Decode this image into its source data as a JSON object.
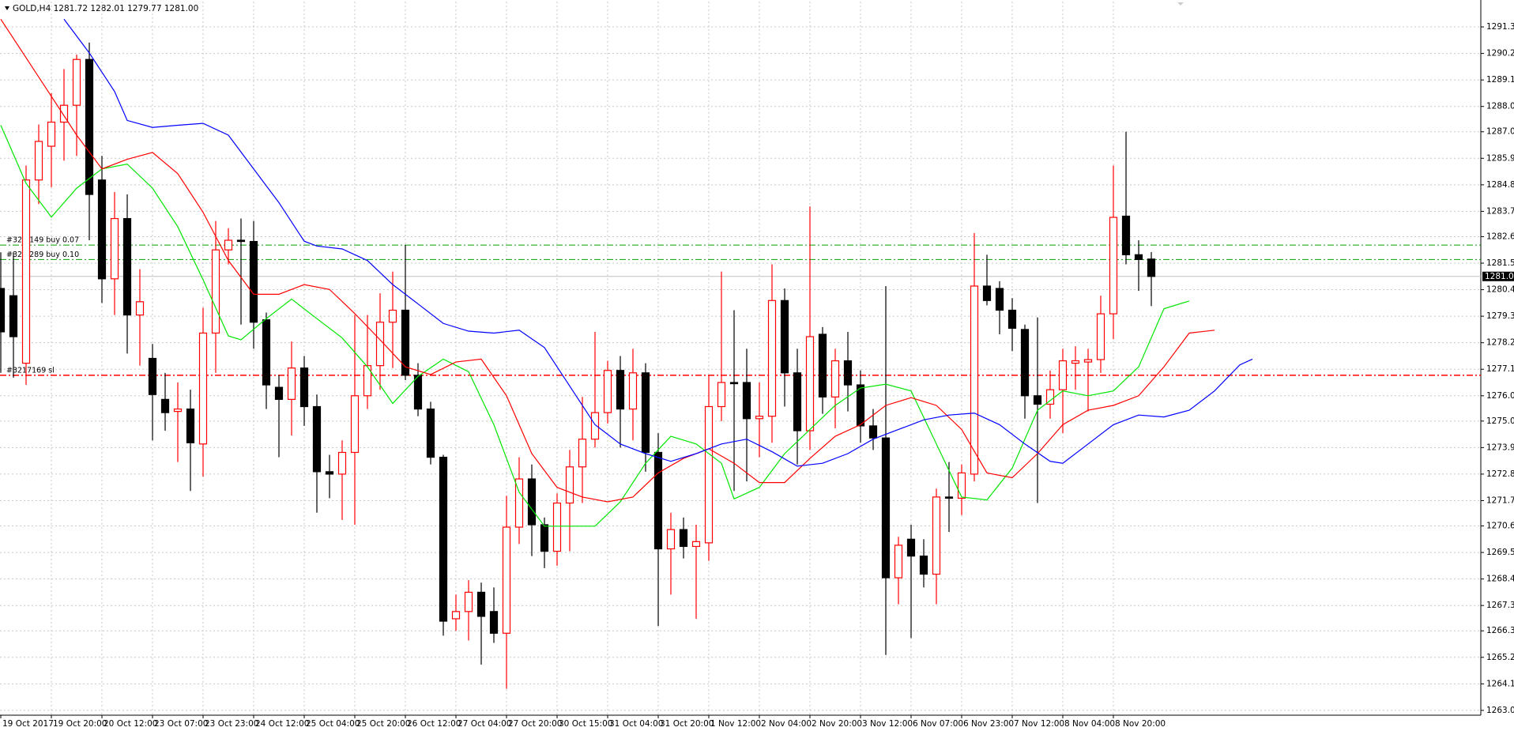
{
  "chart_data": {
    "type": "candlestick",
    "title": "GOLD,H4 1281.72 1282.01 1279.77 1281.00",
    "categories": [
      "19 Oct 2017",
      null,
      null,
      null,
      "19 Oct 20:00",
      null,
      null,
      null,
      "20 Oct 12:00",
      null,
      null,
      null,
      "23 Oct 07:00",
      null,
      null,
      null,
      "23 Oct 23:00",
      null,
      null,
      null,
      "24 Oct 12:00",
      null,
      null,
      null,
      "25 Oct 04:00",
      null,
      null,
      null,
      "25 Oct 20:00",
      null,
      null,
      null,
      "26 Oct 12:00",
      null,
      null,
      null,
      "27 Oct 04:00",
      null,
      null,
      null,
      "27 Oct 20:00",
      null,
      null,
      null,
      "30 Oct 15:00",
      null,
      null,
      null,
      "31 Oct 04:00",
      null,
      null,
      null,
      "31 Oct 20:00",
      null,
      null,
      null,
      "1 Nov 12:00",
      null,
      null,
      null,
      "2 Nov 04:00",
      null,
      null,
      null,
      "2 Nov 20:00",
      null,
      null,
      null,
      "3 Nov 12:00",
      null,
      null,
      null,
      "6 Nov 07:00",
      null,
      null,
      null,
      "6 Nov 23:00",
      null,
      null,
      null,
      "7 Nov 12:00",
      null,
      null,
      null,
      "8 Nov 04:00",
      null,
      null,
      null,
      "8 Nov 20:00",
      null,
      null,
      null,
      null,
      null,
      null,
      null,
      null,
      null,
      null,
      null
    ],
    "open": [
      1280.5,
      1280.2,
      1277.4,
      1285.0,
      1286.4,
      1287.4,
      1288.1,
      1290.0,
      1285.0,
      1280.9,
      1283.4,
      1279.4,
      1277.6,
      1275.9,
      1275.4,
      1275.5,
      1274.05,
      1278.65,
      1282.1,
      1282.5,
      1282.45,
      1279.2,
      1276.4,
      1275.9,
      1277.2,
      1275.6,
      1272.9,
      1272.8,
      1273.7,
      1276.05,
      1277.3,
      1279.1,
      1279.6,
      1276.9,
      1275.5,
      1273.5,
      1266.8,
      1267.1,
      1267.9,
      1267.1,
      1266.2,
      1270.6,
      1272.6,
      1270.7,
      1269.6,
      1271.6,
      1273.1,
      1274.25,
      1275.35,
      1277.1,
      1275.5,
      1277.0,
      1273.7,
      1269.7,
      1270.5,
      1269.8,
      1269.95,
      1275.6,
      1276.6,
      1276.6,
      1275.1,
      1275.2,
      1280.0,
      1277.0,
      1274.6,
      1278.6,
      1276.0,
      1277.5,
      1276.5,
      1274.8,
      1274.3,
      1268.5,
      1270.1,
      1269.4,
      1268.65,
      1271.85,
      1271.8,
      1272.8,
      1280.6,
      1280.5,
      1279.6,
      1278.8,
      1276.05,
      1275.7,
      1276.3,
      1277.4,
      1277.45,
      1277.55,
      1279.45,
      1283.5,
      1281.9,
      1281.72,
      null,
      null,
      null,
      null,
      null,
      null,
      null,
      null
    ],
    "high": [
      1282.0,
      1282.0,
      1285.6,
      1287.3,
      1288.6,
      1289.6,
      1290.2,
      1290.7,
      1286.0,
      1284.5,
      1284.4,
      1281.3,
      1278.2,
      1277.0,
      1276.6,
      1276.3,
      1279.7,
      1283.3,
      1283.0,
      1283.4,
      1283.3,
      1279.5,
      1276.9,
      1278.3,
      1277.7,
      1276.1,
      1273.6,
      1274.2,
      1279.4,
      1279.4,
      1280.3,
      1281.2,
      1282.3,
      1277.4,
      1275.8,
      1273.6,
      1267.8,
      1268.4,
      1268.3,
      1268.1,
      1271.9,
      1273.5,
      1273.2,
      1271.0,
      1272.0,
      1273.8,
      1276.0,
      1278.7,
      1277.5,
      1277.7,
      1278.0,
      1277.4,
      1274.5,
      1271.2,
      1271.0,
      1270.7,
      1276.9,
      1281.2,
      1279.6,
      1278.0,
      1276.6,
      1281.5,
      1280.5,
      1278.0,
      1283.9,
      1278.9,
      1278.0,
      1278.7,
      1277.1,
      1275.5,
      1280.6,
      1270.2,
      1270.7,
      1270.1,
      1272.2,
      1273.3,
      1273.2,
      1282.8,
      1281.9,
      1280.8,
      1280.1,
      1279.0,
      1279.3,
      1277.1,
      1278.0,
      1278.1,
      1278.0,
      1280.2,
      1285.6,
      1287.0,
      1282.5,
      1282.01,
      null,
      null,
      null,
      null,
      null,
      null,
      null,
      null
    ],
    "low": [
      1277.0,
      1276.8,
      1276.5,
      1284.0,
      1284.7,
      1285.8,
      1286.0,
      1282.5,
      1279.9,
      1279.4,
      1277.8,
      1277.3,
      1274.2,
      1274.6,
      1273.3,
      1272.1,
      1272.7,
      1277.0,
      1281.5,
      1279.0,
      1278.0,
      1275.5,
      1273.5,
      1274.4,
      1274.8,
      1271.2,
      1271.8,
      1270.9,
      1270.7,
      1275.5,
      1276.3,
      1277.2,
      1276.7,
      1275.2,
      1273.2,
      1266.1,
      1266.3,
      1265.9,
      1264.9,
      1265.8,
      1263.9,
      1269.9,
      1269.4,
      1268.9,
      1269.0,
      1269.6,
      1271.6,
      1273.9,
      1274.9,
      1273.9,
      1274.2,
      1272.9,
      1266.5,
      1267.8,
      1269.3,
      1266.8,
      1269.2,
      1275.0,
      1272.1,
      1272.5,
      1273.5,
      1274.1,
      1275.6,
      1273.2,
      1273.8,
      1275.3,
      1274.7,
      1275.4,
      1274.1,
      1273.8,
      1265.3,
      1267.4,
      1266.0,
      1268.1,
      1267.4,
      1270.4,
      1271.1,
      1272.5,
      1279.8,
      1278.6,
      1277.9,
      1275.1,
      1271.6,
      1275.1,
      1274.5,
      1276.3,
      1275.4,
      1277.0,
      1278.4,
      1281.5,
      1280.4,
      1279.77,
      null,
      null,
      null,
      null,
      null,
      null,
      null,
      null
    ],
    "close": [
      1278.7,
      1278.5,
      1285.0,
      1286.6,
      1287.4,
      1288.1,
      1290.0,
      1284.4,
      1280.9,
      1283.4,
      1279.4,
      1279.95,
      1276.1,
      1275.35,
      1275.5,
      1274.1,
      1278.65,
      1282.1,
      1282.5,
      1282.45,
      1279.1,
      1276.5,
      1275.9,
      1277.2,
      1275.6,
      1272.9,
      1272.8,
      1273.7,
      1276.05,
      1277.3,
      1279.1,
      1279.6,
      1276.9,
      1275.5,
      1273.5,
      1266.7,
      1267.1,
      1267.9,
      1266.9,
      1266.2,
      1270.6,
      1272.6,
      1270.7,
      1269.6,
      1271.6,
      1273.1,
      1274.25,
      1275.35,
      1277.1,
      1275.5,
      1277.0,
      1273.7,
      1269.7,
      1270.5,
      1269.8,
      1270.0,
      1275.6,
      1276.6,
      1276.55,
      1275.1,
      1275.2,
      1280.0,
      1277.0,
      1274.6,
      1278.5,
      1276.0,
      1277.5,
      1276.5,
      1274.8,
      1274.3,
      1268.5,
      1269.85,
      1269.4,
      1268.65,
      1271.85,
      1271.8,
      1272.85,
      1280.6,
      1280.0,
      1279.6,
      1278.85,
      1276.05,
      1275.7,
      1276.3,
      1277.5,
      1277.5,
      1277.55,
      1279.45,
      1283.45,
      1281.9,
      1281.7,
      1281.0,
      null,
      null,
      null,
      null,
      null,
      null,
      null,
      null
    ],
    "up_color": "#ff0000",
    "down_color": "#000000",
    "lines": [
      {
        "color": "#00e600",
        "x": [
          0,
          2,
          4,
          6,
          8,
          10,
          12,
          14,
          16,
          18,
          19,
          21,
          23,
          25,
          27,
          29,
          31,
          33,
          35,
          37,
          39,
          41,
          43,
          45,
          47,
          49,
          51,
          53,
          55,
          57,
          58,
          60,
          62,
          64,
          66,
          68,
          70,
          72,
          74,
          76,
          78,
          80,
          82,
          84,
          86,
          88,
          90,
          92,
          94
        ],
        "values": [
          1287.27,
          1284.86,
          1283.46,
          1284.66,
          1285.46,
          1285.66,
          1284.66,
          1283.06,
          1280.86,
          1278.53,
          1278.37,
          1279.25,
          1280.06,
          1279.25,
          1278.45,
          1277.25,
          1275.73,
          1276.85,
          1277.57,
          1277.05,
          1274.85,
          1272.05,
          1270.64,
          1270.64,
          1270.64,
          1271.65,
          1273.25,
          1274.37,
          1274.05,
          1273.25,
          1271.77,
          1272.25,
          1273.65,
          1274.65,
          1275.65,
          1276.37,
          1276.53,
          1276.25,
          1274.05,
          1271.85,
          1271.73,
          1273.05,
          1275.45,
          1276.25,
          1276.05,
          1276.25,
          1277.25,
          1279.66,
          1279.98
        ]
      },
      {
        "color": "#ff0000",
        "x": [
          0,
          2,
          4,
          6,
          8,
          10,
          12,
          14,
          16,
          18,
          20,
          22,
          24,
          26,
          28,
          30,
          32,
          34,
          36,
          38,
          40,
          42,
          44,
          46,
          48,
          50,
          52,
          54,
          56,
          58,
          60,
          62,
          64,
          66,
          68,
          70,
          72,
          74,
          76,
          78,
          80,
          82,
          84,
          86,
          88,
          90,
          92,
          94,
          96
        ],
        "values": [
          1291.67,
          1290.07,
          1288.47,
          1286.86,
          1285.46,
          1285.86,
          1286.14,
          1285.26,
          1283.66,
          1281.66,
          1280.26,
          1280.26,
          1280.66,
          1280.46,
          1279.46,
          1278.37,
          1277.25,
          1276.93,
          1277.45,
          1277.57,
          1276.05,
          1273.65,
          1272.25,
          1271.85,
          1271.65,
          1271.85,
          1272.85,
          1273.45,
          1273.85,
          1273.25,
          1272.45,
          1272.45,
          1273.45,
          1274.37,
          1274.85,
          1275.65,
          1275.97,
          1275.65,
          1274.65,
          1272.85,
          1272.65,
          1273.65,
          1274.85,
          1275.45,
          1275.65,
          1276.05,
          1277.25,
          1278.65,
          1278.77
        ]
      },
      {
        "color": "#0000ff",
        "x": [
          5,
          7,
          9,
          10,
          12,
          14,
          16,
          18,
          20,
          22,
          24,
          25,
          27,
          29,
          31,
          33,
          35,
          37,
          39,
          41,
          43,
          45,
          47,
          49,
          51,
          53,
          55,
          57,
          59,
          61,
          63,
          65,
          67,
          69,
          71,
          73,
          75,
          77,
          79,
          81,
          83,
          84,
          86,
          88,
          90,
          92,
          94,
          96,
          98,
          99
        ],
        "values": [
          1291.67,
          1290.27,
          1288.67,
          1287.47,
          1287.18,
          1287.27,
          1287.35,
          1286.86,
          1285.46,
          1284.06,
          1282.46,
          1282.26,
          1282.14,
          1281.66,
          1280.66,
          1279.86,
          1279.05,
          1278.73,
          1278.65,
          1278.77,
          1278.05,
          1276.45,
          1274.85,
          1274.05,
          1273.65,
          1273.33,
          1273.65,
          1274.05,
          1274.25,
          1273.73,
          1273.13,
          1273.25,
          1273.65,
          1274.25,
          1274.65,
          1275.05,
          1275.25,
          1275.33,
          1274.85,
          1274.05,
          1273.33,
          1273.25,
          1274.05,
          1274.85,
          1275.25,
          1275.17,
          1275.45,
          1276.25,
          1277.33,
          1277.57
        ]
      }
    ],
    "levels": [
      {
        "label": "#322 149 buy 0.07",
        "value": 1282.3,
        "color": "#00a000"
      },
      {
        "label": "#321 289 buy 0.10",
        "value": 1281.7,
        "color": "#00a000"
      },
      {
        "label": "#3217169 sl",
        "value": 1276.9,
        "color": "#ff0000"
      }
    ],
    "bid": {
      "value": 1281,
      "label": "1281.00"
    },
    "ylim": [
      1262.8,
      1292.4
    ],
    "yticks": [
      1291.35,
      1290.25,
      1289.15,
      1288.05,
      {
        "value": 1287,
        "label": "1287.00"
      },
      {
        "value": 1285.9,
        "label": "1285.90"
      },
      {
        "value": 1284.8,
        "label": "1284.80"
      },
      {
        "value": 1283.7,
        "label": "1283.70"
      },
      1282.65,
      1281.55,
      1280.45,
      1279.35,
      1278.25,
      1277.15,
      1276.05,
      {
        "value": 1275,
        "label": "1275.00"
      },
      {
        "value": 1273.9,
        "label": "1273.90"
      },
      {
        "value": 1272.8,
        "label": "1272.80"
      },
      {
        "value": 1271.7,
        "label": "1271.70"
      },
      1270.65,
      1269.55,
      1268.45,
      1267.35,
      {
        "value": 1266.3,
        "label": "1266.30"
      },
      {
        "value": 1265.2,
        "label": "1265.20"
      },
      {
        "value": 1264.1,
        "label": "1264.10"
      },
      {
        "value": 1263,
        "label": "1263.00"
      }
    ],
    "grid": true
  }
}
